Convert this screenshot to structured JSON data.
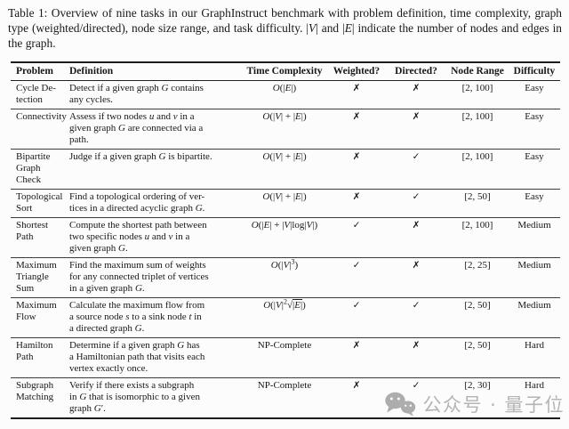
{
  "caption_html": "Table 1:  Overview of nine tasks in our GraphInstruct benchmark with problem definition, time complexity, graph type (weighted/directed), node size range, and task difficulty. |<i>V</i>| and |<i>E</i>| indicate the number of nodes and edges in the graph.",
  "table": {
    "headers": {
      "problem": "Problem",
      "definition": "Definition",
      "complexity": "Time Complexity",
      "weighted": "Weighted?",
      "directed": "Directed?",
      "node_range": "Node Range",
      "difficulty": "Difficulty"
    },
    "rows": [
      {
        "problem_html": "Cycle De-<br>tection",
        "definition_html": "Detect if a given graph <i>G</i> contains<br>any cycles.",
        "complexity_html": "<i>O</i>(|<i>E</i>|)",
        "weighted": "✗",
        "directed": "✗",
        "node_range": "[2, 100]",
        "difficulty": "Easy"
      },
      {
        "problem_html": "Connectivity",
        "definition_html": "Assess if two nodes <i>u</i> and <i>v</i> in a<br>given graph <i>G</i> are connected via a<br>path.",
        "complexity_html": "<i>O</i>(|<i>V</i>| + |<i>E</i>|)",
        "weighted": "✗",
        "directed": "✗",
        "node_range": "[2, 100]",
        "difficulty": "Easy"
      },
      {
        "problem_html": "Bipartite<br>Graph<br>Check",
        "definition_html": "Judge if a given graph <i>G</i> is bipartite.",
        "complexity_html": "<i>O</i>(|<i>V</i>| + |<i>E</i>|)",
        "weighted": "✗",
        "directed": "✓",
        "node_range": "[2, 100]",
        "difficulty": "Easy"
      },
      {
        "problem_html": "Topological<br>Sort",
        "definition_html": "Find a topological ordering of ver-<br>tices in a directed acyclic graph <i>G</i>.",
        "complexity_html": "<i>O</i>(|<i>V</i>| + |<i>E</i>|)",
        "weighted": "✗",
        "directed": "✓",
        "node_range": "[2, 50]",
        "difficulty": "Easy"
      },
      {
        "problem_html": "Shortest<br>Path",
        "definition_html": "Compute the shortest path between<br>two specific nodes <i>u</i> and <i>v</i> in a<br>given graph <i>G</i>.",
        "complexity_html": "<i>O</i>(|<i>E</i>| + |<i>V</i>|log|<i>V</i>|)",
        "weighted": "✓",
        "directed": "✗",
        "node_range": "[2, 100]",
        "difficulty": "Medium"
      },
      {
        "problem_html": "Maximum<br>Triangle<br>Sum",
        "definition_html": "Find the maximum sum of weights<br>for any connected triplet of vertices<br>in a given graph <i>G</i>.",
        "complexity_html": "<i>O</i>(|<i>V</i>|<sup>3</sup>)",
        "weighted": "✓",
        "directed": "✗",
        "node_range": "[2, 25]",
        "difficulty": "Medium"
      },
      {
        "problem_html": "Maximum<br>Flow",
        "definition_html": "Calculate the maximum flow from<br>a source node <i>s</i> to a sink node <i>t</i> in<br>a directed graph <i>G</i>.",
        "complexity_html": "<i>O</i>(|<i>V</i>|<sup>2</sup>√<span class=\"ov\">|<i>E</i>|</span>)",
        "weighted": "✓",
        "directed": "✓",
        "node_range": "[2, 50]",
        "difficulty": "Medium"
      },
      {
        "problem_html": "Hamilton<br>Path",
        "definition_html": "Determine if a given graph <i>G</i> has<br>a Hamiltonian path that visits each<br>vertex exactly once.",
        "complexity_html": "NP-Complete",
        "weighted": "✗",
        "directed": "✗",
        "node_range": "[2, 50]",
        "difficulty": "Hard"
      },
      {
        "problem_html": "Subgraph<br>Matching",
        "definition_html": "Verify if there exists a subgraph<br>in <i>G</i> that is isomorphic to a given<br>graph <i>G</i>′.",
        "complexity_html": "NP-Complete",
        "weighted": "✗",
        "directed": "✓",
        "node_range": "[2, 30]",
        "difficulty": "Hard"
      }
    ]
  },
  "watermark": {
    "text": "公众号 · 量子位",
    "icon": "wechat-icon",
    "color": "#b4b4b4"
  },
  "colors": {
    "background": "#fcfcfc",
    "text": "#181818",
    "rule": "#1c1c1c"
  }
}
